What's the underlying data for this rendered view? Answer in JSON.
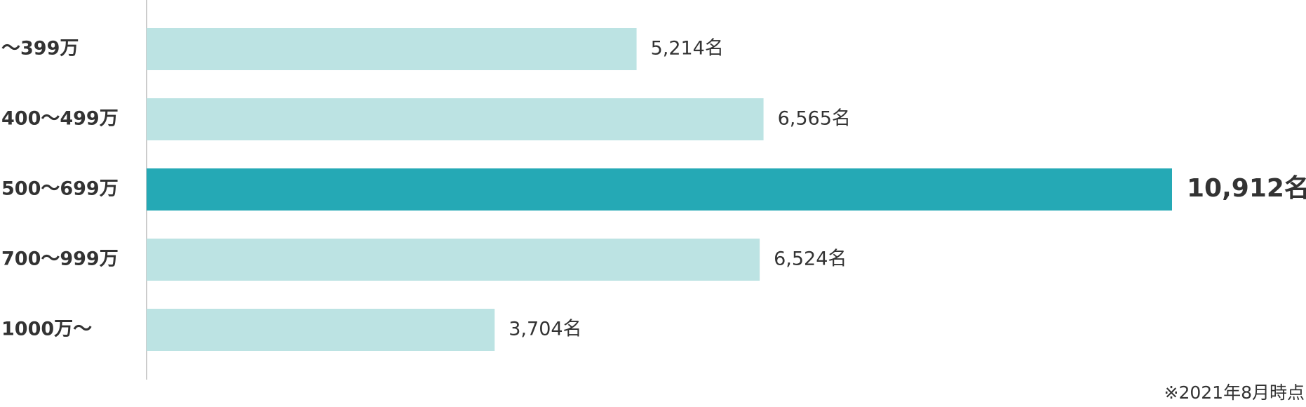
{
  "chart_data": {
    "type": "bar",
    "orientation": "horizontal",
    "categories": [
      "～399万",
      "400～499万",
      "500～699万",
      "700～999万",
      "1000万～"
    ],
    "values": [
      5214,
      6565,
      10912,
      6524,
      3704
    ],
    "value_labels": [
      "5,214名",
      "6,565名",
      "10,912名",
      "6,524名",
      "3,704名"
    ],
    "highlight_index": 2,
    "title": "",
    "xlabel": "",
    "ylabel": "",
    "xlim": [
      0,
      10912
    ],
    "grid": false,
    "legend": "none"
  },
  "colors": {
    "bar": "#bce3e3",
    "bar_highlight": "#25a9b5",
    "highlight_text": "#e8507c",
    "text": "#333333",
    "axis": "#cccccc"
  },
  "footnote": "※2021年8月時点"
}
